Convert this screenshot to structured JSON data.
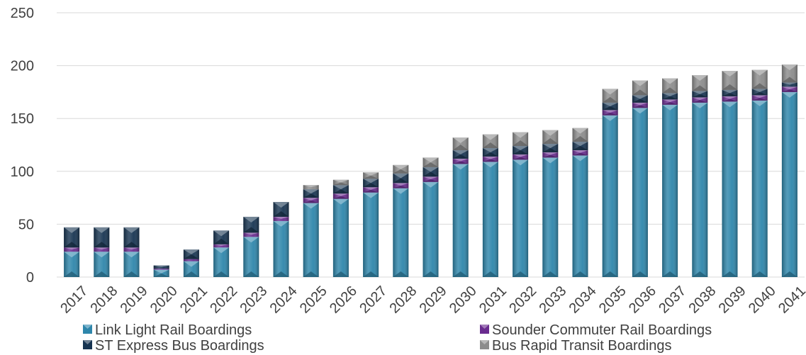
{
  "chart_data": {
    "type": "bar",
    "stacked": true,
    "categories": [
      "2017",
      "2018",
      "2019",
      "2020",
      "2021",
      "2022",
      "2023",
      "2024",
      "2025",
      "2026",
      "2027",
      "2028",
      "2029",
      "2030",
      "2031",
      "2032",
      "2033",
      "2034",
      "2035",
      "2036",
      "2037",
      "2038",
      "2039",
      "2040",
      "2041"
    ],
    "series": [
      {
        "name": "Link Light Rail Boardings",
        "color": "#2e86ab",
        "values": [
          24,
          24,
          24,
          7,
          15,
          28,
          38,
          53,
          70,
          74,
          80,
          84,
          90,
          107,
          109,
          111,
          113,
          115,
          153,
          160,
          163,
          165,
          166,
          167,
          175
        ]
      },
      {
        "name": "Sounder Commuter Rail Boardings",
        "color": "#6a2c8f",
        "values": [
          4,
          4,
          4,
          1,
          2,
          3,
          4,
          4,
          5,
          5,
          5,
          5,
          5,
          5,
          5,
          5,
          5,
          5,
          5,
          5,
          5,
          5,
          5,
          5,
          5
        ]
      },
      {
        "name": "ST Express Bus Boardings",
        "color": "#173451",
        "values": [
          19,
          19,
          19,
          3,
          9,
          13,
          15,
          14,
          8,
          8,
          8,
          9,
          9,
          8,
          8,
          8,
          8,
          8,
          7,
          7,
          6,
          6,
          6,
          6,
          4
        ]
      },
      {
        "name": "Bus Rapid Transit Boardings",
        "color": "#8c8c8c",
        "values": [
          0,
          0,
          0,
          0,
          0,
          0,
          0,
          0,
          4,
          5,
          6,
          8,
          9,
          12,
          13,
          13,
          13,
          13,
          13,
          14,
          14,
          15,
          18,
          18,
          17
        ]
      }
    ],
    "y_ticks": [
      "0",
      "50",
      "100",
      "150",
      "200",
      "250"
    ],
    "ylim": [
      0,
      250
    ],
    "grid": true,
    "legend_position": "bottom"
  }
}
